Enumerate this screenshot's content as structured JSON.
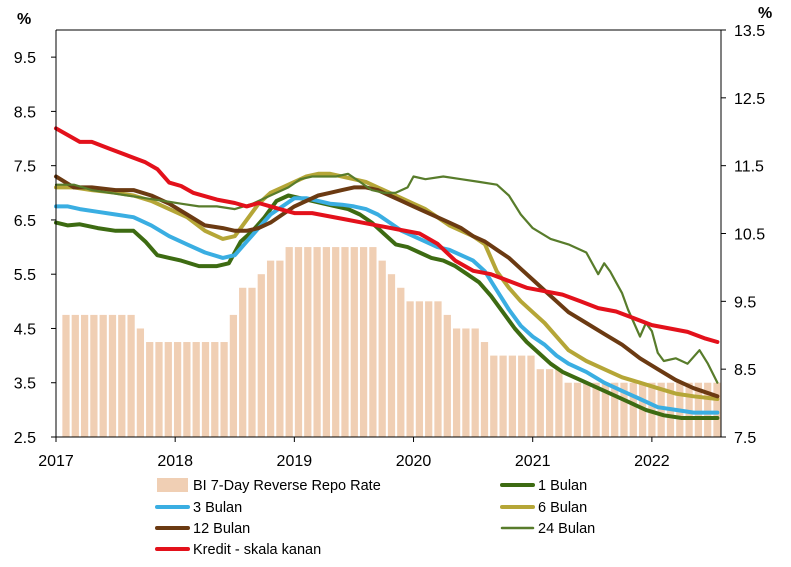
{
  "chart_data": {
    "type": "bar+line",
    "left_axis": {
      "unit": "%",
      "ticks": [
        "9.5",
        "8.5",
        "7.5",
        "6.5",
        "5.5",
        "4.5",
        "3.5",
        "2.5"
      ],
      "ylim": [
        2.5,
        10
      ]
    },
    "right_axis": {
      "unit": "%",
      "ticks": [
        "13.5",
        "12.5",
        "11.5",
        "10.5",
        "9.5",
        "8.5",
        "7.5"
      ],
      "ylim": [
        7.5,
        13.5
      ]
    },
    "x_ticks": [
      "2017",
      "2018",
      "2019",
      "2020",
      "2021",
      "2022"
    ],
    "x_range": [
      2017.0,
      2022.58
    ],
    "bars": {
      "name": "BI 7-Day Reverse Repo Rate",
      "color": "#f0cfb4",
      "values": [
        4.75,
        4.75,
        4.75,
        4.75,
        4.75,
        4.75,
        4.75,
        4.75,
        4.5,
        4.25,
        4.25,
        4.25,
        4.25,
        4.25,
        4.25,
        4.25,
        4.25,
        4.25,
        4.75,
        5.25,
        5.25,
        5.5,
        5.75,
        5.75,
        6.0,
        6.0,
        6.0,
        6.0,
        6.0,
        6.0,
        6.0,
        6.0,
        6.0,
        6.0,
        5.75,
        5.5,
        5.25,
        5.0,
        5.0,
        5.0,
        5.0,
        4.75,
        4.5,
        4.5,
        4.5,
        4.25,
        4.0,
        4.0,
        4.0,
        4.0,
        4.0,
        3.75,
        3.75,
        3.75,
        3.5,
        3.5,
        3.5,
        3.5,
        3.5,
        3.5,
        3.5,
        3.5,
        3.5,
        3.5,
        3.5,
        3.5,
        3.5,
        3.5,
        3.5,
        3.5,
        3.5
      ]
    },
    "series": [
      {
        "name": "1 Bulan",
        "color": "#3d6b12",
        "axis": "left",
        "x": [
          2017.0,
          2017.1,
          2017.2,
          2017.35,
          2017.5,
          2017.65,
          2017.75,
          2017.85,
          2017.95,
          2018.05,
          2018.2,
          2018.35,
          2018.45,
          2018.55,
          2018.65,
          2018.75,
          2018.85,
          2018.95,
          2019.05,
          2019.15,
          2019.25,
          2019.35,
          2019.45,
          2019.55,
          2019.65,
          2019.75,
          2019.85,
          2019.95,
          2020.05,
          2020.15,
          2020.25,
          2020.35,
          2020.45,
          2020.55,
          2020.65,
          2020.75,
          2020.85,
          2020.95,
          2021.05,
          2021.15,
          2021.25,
          2021.35,
          2021.5,
          2021.65,
          2021.8,
          2021.95,
          2022.1,
          2022.25,
          2022.4,
          2022.55
        ],
        "y": [
          6.45,
          6.4,
          6.42,
          6.35,
          6.3,
          6.3,
          6.1,
          5.85,
          5.8,
          5.75,
          5.65,
          5.65,
          5.7,
          6.1,
          6.3,
          6.55,
          6.85,
          6.95,
          6.9,
          6.85,
          6.8,
          6.75,
          6.7,
          6.6,
          6.45,
          6.25,
          6.05,
          6.0,
          5.9,
          5.8,
          5.75,
          5.65,
          5.5,
          5.35,
          5.1,
          4.8,
          4.5,
          4.25,
          4.05,
          3.85,
          3.7,
          3.6,
          3.45,
          3.3,
          3.15,
          3.0,
          2.9,
          2.85,
          2.85,
          2.85
        ]
      },
      {
        "name": "3 Bulan",
        "color": "#3aaee2",
        "axis": "left",
        "x": [
          2017.0,
          2017.1,
          2017.2,
          2017.35,
          2017.5,
          2017.65,
          2017.8,
          2017.95,
          2018.1,
          2018.25,
          2018.4,
          2018.5,
          2018.6,
          2018.7,
          2018.8,
          2018.9,
          2019.0,
          2019.1,
          2019.2,
          2019.3,
          2019.4,
          2019.5,
          2019.6,
          2019.7,
          2019.8,
          2019.9,
          2020.0,
          2020.1,
          2020.2,
          2020.3,
          2020.4,
          2020.5,
          2020.6,
          2020.7,
          2020.8,
          2020.9,
          2021.0,
          2021.1,
          2021.2,
          2021.3,
          2021.45,
          2021.6,
          2021.75,
          2021.9,
          2022.05,
          2022.2,
          2022.35,
          2022.55
        ],
        "y": [
          6.75,
          6.75,
          6.7,
          6.65,
          6.6,
          6.55,
          6.4,
          6.2,
          6.05,
          5.9,
          5.8,
          5.85,
          6.1,
          6.35,
          6.6,
          6.75,
          6.9,
          6.9,
          6.85,
          6.8,
          6.78,
          6.75,
          6.7,
          6.6,
          6.45,
          6.3,
          6.2,
          6.1,
          6.0,
          5.95,
          5.85,
          5.75,
          5.55,
          5.2,
          4.85,
          4.55,
          4.35,
          4.2,
          4.0,
          3.85,
          3.7,
          3.5,
          3.35,
          3.2,
          3.05,
          3.0,
          2.95,
          2.95
        ]
      },
      {
        "name": "6 Bulan",
        "color": "#b5a637",
        "axis": "left",
        "x": [
          2017.0,
          2017.15,
          2017.3,
          2017.5,
          2017.65,
          2017.8,
          2017.95,
          2018.1,
          2018.25,
          2018.4,
          2018.5,
          2018.6,
          2018.7,
          2018.8,
          2018.9,
          2019.0,
          2019.1,
          2019.2,
          2019.3,
          2019.4,
          2019.5,
          2019.6,
          2019.7,
          2019.8,
          2019.9,
          2020.0,
          2020.1,
          2020.2,
          2020.3,
          2020.4,
          2020.5,
          2020.6,
          2020.7,
          2020.8,
          2020.9,
          2021.0,
          2021.1,
          2021.2,
          2021.3,
          2021.45,
          2021.6,
          2021.75,
          2021.9,
          2022.05,
          2022.2,
          2022.35,
          2022.55
        ],
        "y": [
          7.1,
          7.1,
          7.05,
          7.0,
          6.95,
          6.85,
          6.7,
          6.55,
          6.3,
          6.15,
          6.2,
          6.5,
          6.8,
          7.0,
          7.1,
          7.2,
          7.3,
          7.35,
          7.35,
          7.3,
          7.25,
          7.2,
          7.1,
          7.0,
          6.9,
          6.8,
          6.7,
          6.55,
          6.4,
          6.3,
          6.2,
          6.05,
          5.55,
          5.25,
          5.0,
          4.8,
          4.6,
          4.35,
          4.1,
          3.9,
          3.75,
          3.6,
          3.5,
          3.4,
          3.3,
          3.25,
          3.2
        ]
      },
      {
        "name": "12 Bulan",
        "color": "#6b3a12",
        "axis": "left",
        "x": [
          2017.0,
          2017.15,
          2017.3,
          2017.5,
          2017.65,
          2017.8,
          2017.95,
          2018.1,
          2018.25,
          2018.4,
          2018.5,
          2018.6,
          2018.7,
          2018.8,
          2018.9,
          2019.0,
          2019.1,
          2019.2,
          2019.3,
          2019.4,
          2019.5,
          2019.6,
          2019.7,
          2019.8,
          2019.9,
          2020.0,
          2020.1,
          2020.2,
          2020.3,
          2020.4,
          2020.5,
          2020.6,
          2020.7,
          2020.8,
          2020.9,
          2021.0,
          2021.1,
          2021.2,
          2021.3,
          2021.45,
          2021.6,
          2021.75,
          2021.9,
          2022.05,
          2022.2,
          2022.35,
          2022.55
        ],
        "y": [
          7.3,
          7.1,
          7.1,
          7.05,
          7.05,
          6.95,
          6.8,
          6.6,
          6.4,
          6.35,
          6.3,
          6.3,
          6.35,
          6.45,
          6.6,
          6.75,
          6.85,
          6.95,
          7.0,
          7.05,
          7.1,
          7.1,
          7.05,
          6.95,
          6.85,
          6.75,
          6.65,
          6.55,
          6.45,
          6.35,
          6.2,
          6.1,
          5.95,
          5.8,
          5.6,
          5.4,
          5.2,
          5.0,
          4.8,
          4.6,
          4.4,
          4.2,
          3.95,
          3.75,
          3.55,
          3.4,
          3.25
        ]
      },
      {
        "name": "24 Bulan",
        "color": "#587c2b",
        "axis": "left",
        "x": [
          2017.0,
          2017.15,
          2017.3,
          2017.45,
          2017.6,
          2017.75,
          2017.9,
          2018.05,
          2018.2,
          2018.35,
          2018.5,
          2018.65,
          2018.8,
          2018.95,
          2019.05,
          2019.15,
          2019.25,
          2019.35,
          2019.45,
          2019.55,
          2019.65,
          2019.75,
          2019.85,
          2019.95,
          2020.0,
          2020.1,
          2020.25,
          2020.4,
          2020.55,
          2020.7,
          2020.8,
          2020.9,
          2021.0,
          2021.15,
          2021.3,
          2021.45,
          2021.55,
          2021.6,
          2021.65,
          2021.7,
          2021.75,
          2021.8,
          2021.85,
          2021.9,
          2021.95,
          2022.0,
          2022.05,
          2022.1,
          2022.2,
          2022.3,
          2022.4,
          2022.47,
          2022.55
        ],
        "y": [
          7.15,
          7.15,
          7.05,
          7.0,
          6.95,
          6.9,
          6.85,
          6.8,
          6.75,
          6.75,
          6.7,
          6.8,
          6.95,
          7.1,
          7.25,
          7.3,
          7.3,
          7.3,
          7.35,
          7.2,
          7.05,
          7.0,
          7.0,
          7.1,
          7.3,
          7.25,
          7.3,
          7.25,
          7.2,
          7.15,
          6.95,
          6.6,
          6.35,
          6.15,
          6.05,
          5.9,
          5.5,
          5.7,
          5.55,
          5.35,
          5.15,
          4.85,
          4.6,
          4.35,
          4.6,
          4.45,
          4.05,
          3.9,
          3.95,
          3.85,
          4.1,
          3.85,
          3.5
        ]
      },
      {
        "name": "Kredit - skala kanan",
        "color": "#e3111b",
        "axis": "right",
        "x": [
          2017.0,
          2017.1,
          2017.2,
          2017.3,
          2017.45,
          2017.6,
          2017.75,
          2017.85,
          2017.95,
          2018.05,
          2018.15,
          2018.25,
          2018.35,
          2018.5,
          2018.6,
          2018.7,
          2018.8,
          2018.9,
          2019.0,
          2019.15,
          2019.3,
          2019.45,
          2019.6,
          2019.75,
          2019.9,
          2020.05,
          2020.2,
          2020.35,
          2020.5,
          2020.65,
          2020.8,
          2020.95,
          2021.1,
          2021.25,
          2021.4,
          2021.55,
          2021.7,
          2021.85,
          2022.0,
          2022.15,
          2022.3,
          2022.45,
          2022.55
        ],
        "y": [
          12.05,
          11.95,
          11.85,
          11.85,
          11.75,
          11.65,
          11.55,
          11.45,
          11.25,
          11.2,
          11.1,
          11.05,
          11.0,
          10.95,
          10.9,
          10.95,
          10.9,
          10.85,
          10.8,
          10.8,
          10.75,
          10.7,
          10.65,
          10.6,
          10.55,
          10.5,
          10.35,
          10.1,
          9.95,
          9.9,
          9.8,
          9.7,
          9.65,
          9.6,
          9.5,
          9.4,
          9.35,
          9.25,
          9.15,
          9.1,
          9.05,
          8.95,
          8.9
        ]
      }
    ]
  },
  "legend": [
    {
      "label": "BI 7-Day Reverse Repo Rate",
      "kind": "box",
      "color": "#f0cfb4"
    },
    {
      "label": "1 Bulan",
      "kind": "line",
      "color": "#3d6b12"
    },
    {
      "label": "3 Bulan",
      "kind": "line",
      "color": "#3aaee2"
    },
    {
      "label": "6 Bulan",
      "kind": "line",
      "color": "#b5a637"
    },
    {
      "label": "12 Bulan",
      "kind": "line",
      "color": "#6b3a12"
    },
    {
      "label": "24 Bulan",
      "kind": "line",
      "color": "#587c2b"
    },
    {
      "label": "Kredit - skala kanan",
      "kind": "line",
      "color": "#e3111b"
    }
  ]
}
